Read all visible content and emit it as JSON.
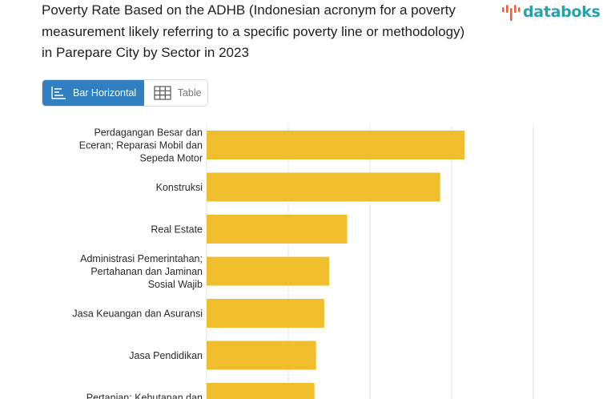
{
  "title": "Poverty Rate Based on the ADHB (Indonesian acronym for a poverty measurement likely referring to a specific poverty line or methodology) in Parepare City by Sector in 2023",
  "logo": {
    "text": "databoks",
    "icon": "databoks-bars-logo",
    "color": "#2b9fae"
  },
  "view_toggle": {
    "options": [
      {
        "label": "Bar Horizontal",
        "icon": "bar-horizontal-icon",
        "active": true
      },
      {
        "label": "Table",
        "icon": "table-grid-icon",
        "active": false
      }
    ],
    "active_color": "#2f7fc1"
  },
  "chart_data": {
    "type": "bar",
    "orientation": "horizontal",
    "categories": [
      [
        "Perdagangan Besar dan",
        "Eceran; Reparasi Mobil dan",
        "Sepeda Motor"
      ],
      [
        "Konstruksi"
      ],
      [
        "Real Estate"
      ],
      [
        "Administrasi Pemerintahan;",
        "Pertahanan dan Jaminan",
        "Sosial Wajib"
      ],
      [
        "Jasa Keuangan dan Asuransi"
      ],
      [
        "Jasa Pendidikan"
      ],
      [
        "Pertanian; Kehutanan dan"
      ]
    ],
    "values": [
      15.8,
      14.3,
      8.6,
      7.5,
      7.2,
      6.7,
      6.6
    ],
    "xlim": [
      0,
      20
    ],
    "grid": true,
    "bar_color": "#f0be2c",
    "grid_color": "#e6e6e6"
  }
}
